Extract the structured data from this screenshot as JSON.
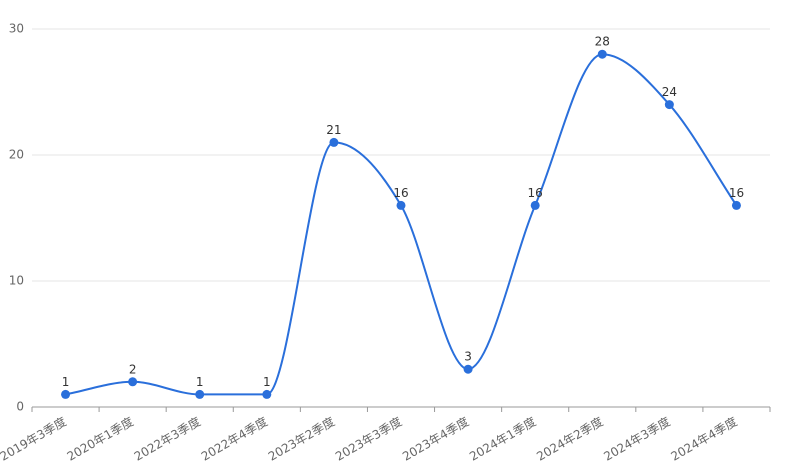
{
  "chart_data": {
    "type": "line",
    "categories": [
      "2019年3季度",
      "2020年1季度",
      "2022年3季度",
      "2022年4季度",
      "2023年2季度",
      "2023年3季度",
      "2023年4季度",
      "2024年1季度",
      "2024年2季度",
      "2024年3季度",
      "2024年4季度"
    ],
    "values": [
      1,
      2,
      1,
      1,
      21,
      16,
      3,
      16,
      28,
      24,
      16
    ],
    "color": "#2a6fdb",
    "smooth": true,
    "data_labels": true,
    "ylim": [
      0,
      30
    ],
    "yticks": [
      0,
      10,
      20,
      30
    ],
    "grid": true
  }
}
